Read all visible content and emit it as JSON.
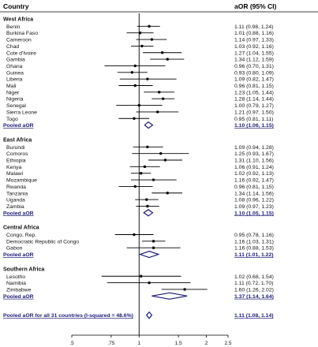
{
  "chart_data": {
    "type": "forest",
    "header_left": "Country",
    "header_right": "aOR (95% CI)",
    "x_scale": "log",
    "xlim": [
      0.5,
      2.5
    ],
    "x_ticks": [
      {
        "value": 0.5,
        "label": ".5"
      },
      {
        "value": 0.75,
        "label": ".75"
      },
      {
        "value": 1,
        "label": "1"
      },
      {
        "value": 1.5,
        "label": "1.5"
      },
      {
        "value": 2,
        "label": "2"
      },
      {
        "value": 2.5,
        "label": "2.5"
      }
    ],
    "reference_line": 1,
    "groups": [
      {
        "name": "West Africa",
        "studies": [
          {
            "label": "Benin",
            "est": 1.11,
            "lo": 0.98,
            "hi": 1.24,
            "text": "1.11 (0.98, 1.24)"
          },
          {
            "label": "Burkina Faso",
            "est": 1.01,
            "lo": 0.88,
            "hi": 1.16,
            "text": "1.01 (0.88, 1.16)"
          },
          {
            "label": "Cameroon",
            "est": 1.14,
            "lo": 0.97,
            "hi": 1.33,
            "text": "1.14 (0.97, 1.33)"
          },
          {
            "label": "Chad",
            "est": 1.03,
            "lo": 0.92,
            "hi": 1.16,
            "text": "1.03 (0.92, 1.16)"
          },
          {
            "label": "Cote d'Ivoire",
            "est": 1.27,
            "lo": 1.04,
            "hi": 1.55,
            "text": "1.27 (1.04, 1.55)"
          },
          {
            "label": "Gambia",
            "est": 1.34,
            "lo": 1.12,
            "hi": 1.59,
            "text": "1.34 (1.12, 1.59)"
          },
          {
            "label": "Ghana",
            "est": 0.96,
            "lo": 0.7,
            "hi": 1.31,
            "text": "0.96 (0.70, 1.31)"
          },
          {
            "label": "Guinea",
            "est": 0.93,
            "lo": 0.8,
            "hi": 1.09,
            "text": "0.93 (0.80, 1.09)"
          },
          {
            "label": "Liberia",
            "est": 1.09,
            "lo": 0.82,
            "hi": 1.47,
            "text": "1.09 (0.82, 1.47)"
          },
          {
            "label": "Mali",
            "est": 0.96,
            "lo": 0.81,
            "hi": 1.15,
            "text": "0.96 (0.81, 1.15)"
          },
          {
            "label": "Niger",
            "est": 1.23,
            "lo": 1.05,
            "hi": 1.44,
            "text": "1.23 (1.05, 1.44)"
          },
          {
            "label": "Nigeria",
            "est": 1.28,
            "lo": 1.14,
            "hi": 1.44,
            "text": "1.28 (1.14, 1.44)"
          },
          {
            "label": "Senegal",
            "est": 1.0,
            "lo": 0.79,
            "hi": 1.27,
            "text": "1.00 (0.79, 1.27)"
          },
          {
            "label": "Sierra Leone",
            "est": 1.21,
            "lo": 0.97,
            "hi": 1.5,
            "text": "1.21 (0.97, 1.50)"
          },
          {
            "label": "Togo",
            "est": 0.95,
            "lo": 0.81,
            "hi": 1.11,
            "text": "0.95 (0.81, 1.11)"
          }
        ],
        "pooled": {
          "label": "Pooled aOR",
          "est": 1.1,
          "lo": 1.06,
          "hi": 1.15,
          "text": "1.10 (1.06, 1.15)"
        }
      },
      {
        "name": "East Africa",
        "studies": [
          {
            "label": "Burundi",
            "est": 1.09,
            "lo": 0.94,
            "hi": 1.28,
            "text": "1.09 (0.94, 1.28)"
          },
          {
            "label": "Comoros",
            "est": 1.25,
            "lo": 0.93,
            "hi": 1.67,
            "text": "1.25 (0.93, 1.67)"
          },
          {
            "label": "Ethiopia",
            "est": 1.31,
            "lo": 1.1,
            "hi": 1.56,
            "text": "1.31 (1.10, 1.56)"
          },
          {
            "label": "Kenya",
            "est": 1.06,
            "lo": 0.91,
            "hi": 1.24,
            "text": "1.06 (0.91, 1.24)"
          },
          {
            "label": "Malawi",
            "est": 1.02,
            "lo": 0.92,
            "hi": 1.13,
            "text": "1.02 (0.92, 1.13)"
          },
          {
            "label": "Mozambique",
            "est": 1.16,
            "lo": 0.92,
            "hi": 1.47,
            "text": "1.16 (0.92, 1.47)"
          },
          {
            "label": "Rwanda",
            "est": 0.96,
            "lo": 0.81,
            "hi": 1.15,
            "text": "0.96 (0.81, 1.15)"
          },
          {
            "label": "Tanzania",
            "est": 1.34,
            "lo": 1.14,
            "hi": 1.56,
            "text": "1.34 (1.14, 1.56)"
          },
          {
            "label": "Uganda",
            "est": 1.08,
            "lo": 0.96,
            "hi": 1.22,
            "text": "1.08 (0.96, 1.22)"
          },
          {
            "label": "Zambia",
            "est": 1.09,
            "lo": 0.97,
            "hi": 1.23,
            "text": "1.09 (0.97, 1.23)"
          }
        ],
        "pooled": {
          "label": "Pooled aOR",
          "est": 1.1,
          "lo": 1.05,
          "hi": 1.15,
          "text": "1.10 (1.05, 1.15)"
        }
      },
      {
        "name": "Central Africa",
        "studies": [
          {
            "label": "Congo, Rep.",
            "est": 0.95,
            "lo": 0.78,
            "hi": 1.16,
            "text": "0.95 (0.78, 1.16)"
          },
          {
            "label": "Democratic Republic of Congo",
            "est": 1.16,
            "lo": 1.03,
            "hi": 1.31,
            "text": "1.16 (1.03, 1.31)"
          },
          {
            "label": "Gabon",
            "est": 1.16,
            "lo": 0.88,
            "hi": 1.53,
            "text": "1.16 (0.88, 1.53)"
          }
        ],
        "pooled": {
          "label": "Pooled aOR",
          "est": 1.11,
          "lo": 1.01,
          "hi": 1.22,
          "text": "1.11 (1.01, 1.22)"
        }
      },
      {
        "name": "Southern Africa",
        "studies": [
          {
            "label": "Lesotho",
            "est": 1.02,
            "lo": 0.68,
            "hi": 1.54,
            "text": "1.02 (0.68, 1.54)"
          },
          {
            "label": "Namibia",
            "est": 1.11,
            "lo": 0.72,
            "hi": 1.7,
            "text": "1.11 (0.72, 1.70)"
          },
          {
            "label": "Zimbabwe",
            "est": 1.6,
            "lo": 1.26,
            "hi": 2.02,
            "text": "1.60 (1.26, 2.02)"
          }
        ],
        "pooled": {
          "label": "Pooled aOR",
          "est": 1.37,
          "lo": 1.14,
          "hi": 1.64,
          "text": "1.37 (1.14, 1.64)"
        }
      }
    ],
    "overall": {
      "label": "Pooled aOR for all 31 countries  (I-squared = 48.6%)",
      "est": 1.11,
      "lo": 1.08,
      "hi": 1.14,
      "text": "1.11 (1.08, 1.14)"
    },
    "colors": {
      "text": "#111111",
      "pooled_text": "#1a1a7a",
      "diamond": "#1a1a7a",
      "line": "#000000",
      "header_rule": "#000000"
    }
  }
}
